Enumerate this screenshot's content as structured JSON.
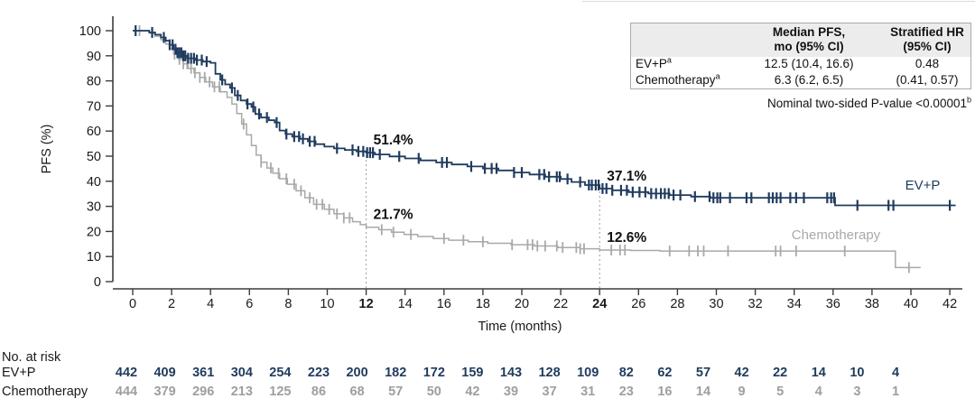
{
  "chart_data": {
    "type": "line",
    "subtype": "kaplan-meier-step",
    "title": "",
    "xlabel": "Time (months)",
    "ylabel": "PFS (%)",
    "x_axis": {
      "min": 0,
      "max": 42,
      "step": 2,
      "bold_ticks": [
        12,
        24
      ]
    },
    "y_axis": {
      "min": 0,
      "max": 100,
      "step": 10
    },
    "grid": false,
    "reference_lines": [
      {
        "month": 12,
        "top_pct": 52
      },
      {
        "month": 24,
        "top_pct": 38
      }
    ],
    "series": [
      {
        "name": "EV+P",
        "color": "#1f3b5e",
        "steps": [
          [
            0,
            100
          ],
          [
            0.85,
            99.3
          ],
          [
            1.15,
            98.4
          ],
          [
            1.45,
            97.3
          ],
          [
            1.7,
            96
          ],
          [
            1.9,
            94.4
          ],
          [
            2.1,
            92.6
          ],
          [
            2.3,
            91.2
          ],
          [
            2.55,
            90
          ],
          [
            2.8,
            89
          ],
          [
            3.2,
            88.3
          ],
          [
            3.6,
            87.7
          ],
          [
            4.0,
            87.2
          ],
          [
            4.25,
            82.8
          ],
          [
            4.5,
            80.4
          ],
          [
            4.75,
            78.6
          ],
          [
            5.0,
            77.2
          ],
          [
            5.25,
            74.2
          ],
          [
            5.55,
            72.2
          ],
          [
            5.85,
            70.8
          ],
          [
            6.1,
            69.6
          ],
          [
            6.3,
            66.8
          ],
          [
            6.6,
            65.4
          ],
          [
            7.0,
            64.3
          ],
          [
            7.3,
            63.4
          ],
          [
            7.55,
            60.2
          ],
          [
            7.85,
            58.8
          ],
          [
            8.2,
            57.8
          ],
          [
            8.6,
            56.9
          ],
          [
            9.0,
            55.9
          ],
          [
            9.4,
            54.8
          ],
          [
            9.85,
            53.8
          ],
          [
            10.35,
            53.1
          ],
          [
            10.9,
            52.5
          ],
          [
            11.5,
            51.9
          ],
          [
            12.0,
            51.4
          ],
          [
            12.45,
            50.7
          ],
          [
            13.2,
            49.9
          ],
          [
            14.0,
            49.1
          ],
          [
            14.8,
            48.3
          ],
          [
            15.6,
            47.5
          ],
          [
            16.4,
            46.7
          ],
          [
            17.2,
            45.9
          ],
          [
            18.0,
            45.1
          ],
          [
            18.8,
            44.3
          ],
          [
            19.6,
            43.5
          ],
          [
            20.4,
            42.7
          ],
          [
            21.2,
            41.8
          ],
          [
            22.0,
            40.9
          ],
          [
            22.55,
            39.7
          ],
          [
            23.25,
            38.5
          ],
          [
            24.0,
            37.1
          ],
          [
            24.65,
            36.4
          ],
          [
            25.5,
            35.7
          ],
          [
            26.5,
            35.1
          ],
          [
            27.6,
            34.5
          ],
          [
            28.7,
            33.9
          ],
          [
            29.7,
            33.4
          ],
          [
            36.1,
            30.4
          ],
          [
            42.3,
            30.4
          ]
        ],
        "censor_months": [
          0.15,
          1.0,
          1.6,
          1.9,
          2.05,
          2.2,
          2.3,
          2.4,
          2.5,
          2.6,
          2.7,
          2.85,
          3.0,
          3.15,
          3.3,
          3.55,
          3.8,
          4.6,
          5.1,
          5.4,
          5.9,
          6.2,
          6.5,
          6.9,
          7.4,
          7.9,
          8.3,
          8.55,
          8.75,
          9.1,
          9.35,
          10.5,
          11.3,
          11.6,
          11.85,
          12.05,
          12.2,
          12.35,
          12.7,
          13.7,
          14.7,
          15.9,
          16.15,
          17.4,
          18.1,
          18.45,
          18.7,
          19.6,
          20.0,
          20.9,
          21.15,
          21.4,
          21.8,
          21.95,
          22.35,
          23.0,
          23.45,
          23.6,
          23.8,
          23.95,
          24.15,
          24.35,
          24.65,
          25.1,
          25.4,
          25.7,
          26.05,
          26.35,
          26.65,
          26.9,
          27.15,
          27.35,
          27.55,
          27.8,
          28.15,
          28.9,
          29.65,
          29.85,
          30.05,
          30.2,
          30.7,
          31.55,
          31.8,
          32.7,
          32.9,
          33.1,
          33.3,
          33.8,
          34.1,
          34.5,
          35.7,
          35.9,
          36.05,
          37.25,
          38.85,
          39.1,
          42.0
        ],
        "curve_label": "EV+P"
      },
      {
        "name": "Chemotherapy",
        "color": "#a9a9a9",
        "steps": [
          [
            0,
            100
          ],
          [
            0.85,
            99
          ],
          [
            1.15,
            97.8
          ],
          [
            1.45,
            96.4
          ],
          [
            1.7,
            94.7
          ],
          [
            1.9,
            92.8
          ],
          [
            2.1,
            90.6
          ],
          [
            2.35,
            88.6
          ],
          [
            2.6,
            86.8
          ],
          [
            2.85,
            85
          ],
          [
            3.15,
            83.2
          ],
          [
            3.45,
            81.4
          ],
          [
            3.75,
            79.6
          ],
          [
            4.1,
            77.6
          ],
          [
            4.5,
            75.6
          ],
          [
            4.85,
            73.4
          ],
          [
            5.1,
            70.8
          ],
          [
            5.35,
            67
          ],
          [
            5.6,
            62.8
          ],
          [
            5.85,
            58.5
          ],
          [
            6.1,
            54.2
          ],
          [
            6.35,
            50.4
          ],
          [
            6.6,
            47.6
          ],
          [
            6.9,
            45.3
          ],
          [
            7.2,
            43.2
          ],
          [
            7.55,
            41
          ],
          [
            7.95,
            38.8
          ],
          [
            8.4,
            36.2
          ],
          [
            8.85,
            33.4
          ],
          [
            9.3,
            30.8
          ],
          [
            9.85,
            28.8
          ],
          [
            10.35,
            27
          ],
          [
            10.85,
            25.4
          ],
          [
            11.3,
            23.9
          ],
          [
            11.7,
            22.7
          ],
          [
            12.0,
            21.7
          ],
          [
            12.65,
            20.7
          ],
          [
            13.3,
            19.7
          ],
          [
            13.95,
            18.8
          ],
          [
            14.65,
            18
          ],
          [
            15.45,
            17.2
          ],
          [
            16.25,
            16.5
          ],
          [
            17.25,
            15.9
          ],
          [
            18.25,
            15.3
          ],
          [
            19.45,
            14.7
          ],
          [
            20.65,
            14.2
          ],
          [
            21.85,
            13.6
          ],
          [
            23.0,
            13.1
          ],
          [
            24.0,
            12.6
          ],
          [
            25.6,
            12.4
          ],
          [
            27.1,
            12.2
          ],
          [
            39.2,
            5.6
          ],
          [
            40.5,
            5.6
          ]
        ],
        "censor_months": [
          0.35,
          2.15,
          2.4,
          2.6,
          2.8,
          3.0,
          3.2,
          3.45,
          3.7,
          3.95,
          4.2,
          4.45,
          5.7,
          6.6,
          7.1,
          7.5,
          7.9,
          8.3,
          8.65,
          9.1,
          9.45,
          9.75,
          10.1,
          10.5,
          10.85,
          11.15,
          12.8,
          13.4,
          14.3,
          16.0,
          17.0,
          18.0,
          19.5,
          20.3,
          20.55,
          20.8,
          21.2,
          21.8,
          22.1,
          22.8,
          23.0,
          23.2,
          24.6,
          25.05,
          25.3,
          27.6,
          28.6,
          29.05,
          29.35,
          30.6,
          33.05,
          33.3,
          34.1,
          36.6,
          39.9
        ],
        "curve_label": "Chemotherapy"
      }
    ],
    "annotations": [
      {
        "text": "51.4%",
        "month": 12,
        "pct": 51.4
      },
      {
        "text": "21.7%",
        "month": 12,
        "pct": 21.7
      },
      {
        "text": "37.1%",
        "month": 24,
        "pct": 37.1
      },
      {
        "text": "12.6%",
        "month": 24,
        "pct": 12.6
      }
    ]
  },
  "results_table": {
    "headers": [
      "",
      "Median PFS,\nmo (95% CI)",
      "Stratified HR\n(95% CI)"
    ],
    "rows": [
      {
        "label": "EV+P",
        "sup": "a",
        "median": "12.5 (10.4, 16.6)",
        "hr": "0.48"
      },
      {
        "label": "Chemotherapy",
        "sup": "a",
        "median": "6.3 (6.2, 6.5)",
        "hr": "(0.41, 0.57)"
      }
    ],
    "note": "Nominal two-sided P-value <0.00001",
    "note_sup": "b"
  },
  "at_risk": {
    "title": "No. at risk",
    "times": [
      0,
      2,
      4,
      6,
      8,
      10,
      12,
      14,
      16,
      18,
      20,
      22,
      24,
      26,
      28,
      30,
      32,
      34,
      36,
      38,
      40
    ],
    "groups": [
      {
        "label": "EV+P",
        "color": "#1f3b5e",
        "values": [
          442,
          409,
          361,
          304,
          254,
          223,
          200,
          182,
          172,
          159,
          143,
          128,
          109,
          82,
          62,
          57,
          42,
          22,
          14,
          10,
          4
        ]
      },
      {
        "label": "Chemotherapy",
        "color": "#9e9e9e",
        "values": [
          444,
          379,
          296,
          213,
          125,
          86,
          68,
          57,
          50,
          42,
          39,
          37,
          31,
          23,
          16,
          14,
          9,
          5,
          4,
          3,
          1
        ]
      }
    ]
  }
}
